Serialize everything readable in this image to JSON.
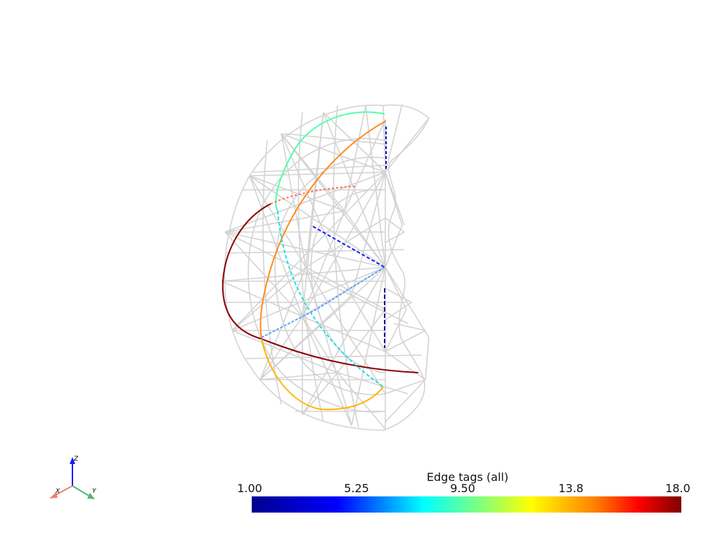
{
  "colorbar": {
    "title": "Edge tags (all)",
    "min": 1.0,
    "max": 18.0,
    "ticks": [
      "1.00",
      "5.25",
      "9.50",
      "13.8",
      "18.0"
    ],
    "colormap": "jet"
  },
  "axes_triad": {
    "x_label": "X",
    "y_label": "Y",
    "z_label": "Z",
    "x_color": "#f08070",
    "y_color": "#4fb870",
    "z_color": "#1a1aff"
  },
  "mesh": {
    "wire_color": "#d3d3d3"
  },
  "tagged_edges": [
    {
      "tag": 7.5,
      "color": "#4fffaa"
    },
    {
      "tag": 13.5,
      "color": "#ff8c1a"
    },
    {
      "tag": 2.0,
      "color": "#0000cc"
    },
    {
      "tag": 17.0,
      "color": "#ff6a50"
    },
    {
      "tag": 18.0,
      "color": "#8b0000"
    },
    {
      "tag": 8.5,
      "color": "#20e0e0"
    },
    {
      "tag": 3.0,
      "color": "#1a1aff"
    },
    {
      "tag": 6.0,
      "color": "#60a0ff"
    },
    {
      "tag": 12.5,
      "color": "#ffb400"
    },
    {
      "tag": 2.5,
      "color": "#0000a0"
    }
  ]
}
